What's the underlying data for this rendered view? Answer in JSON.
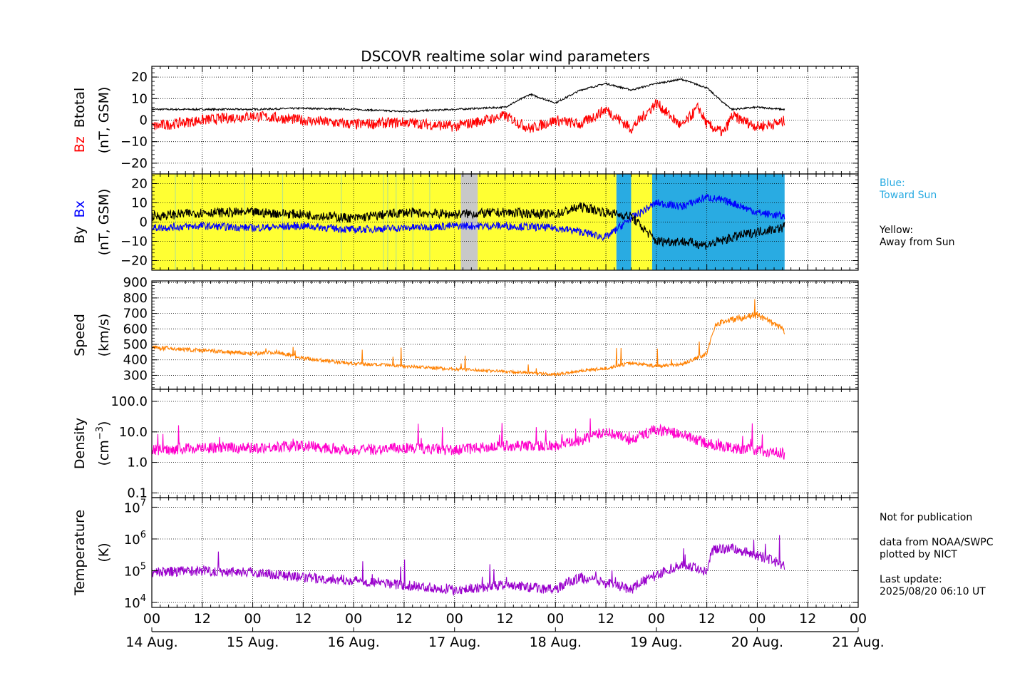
{
  "title": "DSCOVR realtime solar wind parameters",
  "colors": {
    "btotal": "#000000",
    "bz": "#ff0000",
    "bx": "#0000ff",
    "by": "#000000",
    "speed": "#ff8000",
    "density": "#ff00cc",
    "temperature": "#9900cc",
    "toward_sun": "#29abe2",
    "away_from_sun": "#ffff33",
    "gray_gap": "#c8c8c8"
  },
  "side_notes": {
    "blue_line1": "Blue:",
    "blue_line2": "Toward Sun",
    "yellow_line1": "Yellow:",
    "yellow_line2": "Away from Sun",
    "not_for_publication": "Not for publication",
    "data_from": "data from NOAA/SWPC",
    "plotted_by": "plotted by NICT",
    "last_update_label": "Last update:",
    "last_update_value": "2025/08/20 06:10 UT"
  },
  "chart_data": [
    {
      "type": "line",
      "panel": "magnetic-field",
      "ylabel_colored": "Bz",
      "ylabel_black": "Btotal",
      "ylabel_unit": "(nT, GSM)",
      "ylim": [
        -25,
        25
      ],
      "yticks": [
        -20,
        -10,
        0,
        10,
        20
      ],
      "ytick_labels": [
        "−20",
        "−10",
        "0",
        "10",
        "20"
      ],
      "series": [
        {
          "name": "Btotal",
          "x": [
            0,
            12,
            24,
            36,
            48,
            60,
            72,
            84,
            90,
            96,
            102,
            108,
            114,
            120,
            126,
            132,
            136,
            138,
            144,
            150,
            150.5
          ],
          "values": [
            5,
            5,
            5,
            5.5,
            5,
            4,
            5,
            6,
            12,
            8,
            14,
            17,
            14,
            17,
            19,
            15,
            8,
            5,
            6,
            5,
            5
          ]
        },
        {
          "name": "Bz",
          "x": [
            0,
            12,
            24,
            36,
            48,
            60,
            72,
            84,
            90,
            96,
            102,
            108,
            114,
            120,
            126,
            130,
            132,
            136,
            138,
            144,
            150,
            150.5
          ],
          "values": [
            -3,
            0,
            2,
            0,
            -2,
            -1,
            -3,
            2,
            -4,
            0,
            -2,
            5,
            -4,
            8,
            -3,
            6,
            -2,
            -6,
            2,
            -3,
            -1,
            0
          ]
        }
      ]
    },
    {
      "type": "line",
      "panel": "imf-by-bx",
      "ylabel_left": "By",
      "ylabel_colored": "Bx",
      "ylabel_unit": "(nT, GSM)",
      "ylim": [
        -25,
        25
      ],
      "yticks": [
        -20,
        -10,
        0,
        10,
        20
      ],
      "ytick_labels": [
        "−20",
        "−10",
        "0",
        "10",
        "20"
      ],
      "sector_bands": [
        {
          "polarity": "away",
          "x": [
            0,
            110.5
          ]
        },
        {
          "polarity": "toward",
          "x": [
            110.5,
            114
          ]
        },
        {
          "polarity": "away",
          "x": [
            114,
            119
          ]
        },
        {
          "polarity": "toward",
          "x": [
            119,
            150.5
          ]
        },
        {
          "polarity": "gap",
          "x": [
            73.5,
            77.5
          ]
        }
      ],
      "series": [
        {
          "name": "Bx",
          "x": [
            0,
            12,
            24,
            36,
            48,
            60,
            72,
            84,
            96,
            102,
            108,
            114,
            120,
            126,
            132,
            138,
            144,
            150,
            150.5
          ],
          "values": [
            -3,
            -2,
            -3,
            -2,
            -4,
            -3,
            -2,
            -2,
            -3,
            -5,
            -8,
            2,
            10,
            8,
            13,
            10,
            5,
            3,
            3
          ]
        },
        {
          "name": "By",
          "x": [
            0,
            12,
            24,
            36,
            48,
            60,
            72,
            84,
            96,
            102,
            108,
            114,
            120,
            126,
            132,
            138,
            144,
            150,
            150.5
          ],
          "values": [
            3,
            5,
            5,
            4,
            2,
            5,
            4,
            5,
            4,
            8,
            5,
            3,
            -10,
            -10,
            -12,
            -8,
            -5,
            -3,
            -2
          ]
        }
      ]
    },
    {
      "type": "line",
      "panel": "speed",
      "ylabel": "Speed",
      "ylabel_unit": "(km/s)",
      "ylim": [
        210,
        910
      ],
      "yticks": [
        300,
        400,
        500,
        600,
        700,
        800,
        900
      ],
      "series": [
        {
          "name": "Speed",
          "x": [
            0,
            6,
            12,
            24,
            30,
            36,
            48,
            60,
            72,
            84,
            96,
            102,
            108,
            114,
            120,
            126,
            132,
            134,
            136,
            138,
            144,
            150,
            150.5
          ],
          "values": [
            480,
            470,
            460,
            440,
            450,
            410,
            375,
            360,
            340,
            325,
            305,
            330,
            345,
            380,
            360,
            370,
            440,
            620,
            650,
            660,
            690,
            600,
            580
          ]
        }
      ]
    },
    {
      "type": "line",
      "panel": "density",
      "scale": "log",
      "ylabel": "Density",
      "ylabel_unit": "(cm",
      "ylabel_unit_exp": "−3",
      "ylim": [
        0.07,
        250
      ],
      "yticks": [
        0.1,
        1.0,
        10.0,
        100.0
      ],
      "ytick_labels": [
        "0.1",
        "1.0",
        "10.0",
        "100.0"
      ],
      "series": [
        {
          "name": "Density",
          "x": [
            0,
            12,
            24,
            36,
            48,
            60,
            72,
            84,
            96,
            102,
            108,
            114,
            120,
            126,
            132,
            138,
            144,
            150,
            150.5
          ],
          "values": [
            2.5,
            3,
            3,
            3.5,
            2.5,
            3,
            2.5,
            3.5,
            3.5,
            5,
            10,
            5,
            12,
            8,
            4,
            3,
            2.5,
            2,
            1.5
          ]
        }
      ]
    },
    {
      "type": "line",
      "panel": "temperature",
      "scale": "log",
      "ylabel": "Temperature",
      "ylabel_unit": "(K)",
      "ylim": [
        7000,
        20000000
      ],
      "yticks": [
        10000,
        100000,
        1000000,
        10000000
      ],
      "ytick_labels": [
        [
          "10",
          "4"
        ],
        [
          "10",
          "5"
        ],
        [
          "10",
          "6"
        ],
        [
          "10",
          "7"
        ]
      ],
      "series": [
        {
          "name": "Temperature",
          "x": [
            0,
            12,
            24,
            36,
            48,
            60,
            72,
            84,
            96,
            102,
            108,
            114,
            120,
            126,
            132,
            134,
            138,
            144,
            150,
            150.5
          ],
          "values": [
            90000,
            100000,
            90000,
            60000,
            50000,
            35000,
            25000,
            35000,
            25000,
            60000,
            40000,
            25000,
            70000,
            150000,
            100000,
            500000,
            500000,
            300000,
            150000,
            120000
          ]
        }
      ]
    }
  ],
  "x_axis": {
    "hour_ticks": [
      0,
      12,
      24,
      36,
      48,
      60,
      72,
      84,
      96,
      108,
      120,
      132,
      144,
      156,
      168
    ],
    "hour_labels": [
      "00",
      "12",
      "00",
      "12",
      "00",
      "12",
      "00",
      "12",
      "00",
      "12",
      "00",
      "12",
      "00",
      "12",
      "00"
    ],
    "date_ticks": [
      0,
      24,
      48,
      72,
      96,
      120,
      144,
      168
    ],
    "date_labels": [
      "14 Aug.",
      "15 Aug.",
      "16 Aug.",
      "17 Aug.",
      "18 Aug.",
      "19 Aug.",
      "20 Aug.",
      "21 Aug."
    ],
    "xlim": [
      0,
      168
    ],
    "data_end": 150.5
  }
}
